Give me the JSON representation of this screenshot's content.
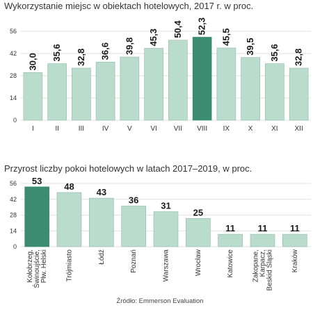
{
  "colors": {
    "bar": "#b9dccd",
    "highlight": "#3c8c72",
    "barStroke": "#8fb9a7"
  },
  "chart_data": [
    {
      "type": "bar",
      "title": "Wykorzystanie miejsc w obiektach hotelowych, 2017 r. w proc.",
      "categories": [
        "I",
        "II",
        "III",
        "IV",
        "V",
        "VI",
        "VII",
        "VIII",
        "IX",
        "X",
        "XI",
        "XII"
      ],
      "values": [
        30.0,
        35.6,
        32.8,
        36.6,
        39.8,
        45.3,
        50.4,
        52.3,
        45.5,
        39.5,
        35.6,
        32.8
      ],
      "value_labels": [
        "30,0",
        "35,6",
        "32,8",
        "36,6",
        "39,8",
        "45,3",
        "50,4",
        "52,3",
        "45,5",
        "39,5",
        "35,6",
        "32,8"
      ],
      "highlight_index": 7,
      "yticks": [
        0,
        14,
        28,
        42,
        56
      ],
      "ylim": [
        0,
        56
      ],
      "grid": true
    },
    {
      "type": "bar",
      "title": "Przyrost liczby pokoi hotelowych w latach 2017–2019, w proc.",
      "categories": [
        [
          "Kołobrzeg,",
          "Świnoujście,",
          "Płw. Helski"
        ],
        [
          "Trójmiasto"
        ],
        [
          "Łódź"
        ],
        [
          "Poznań"
        ],
        [
          "Warszawa"
        ],
        [
          "Wrocław"
        ],
        [
          "Katowice"
        ],
        [
          "Zakopane,",
          "Karpacz,",
          "Beskid Śląski"
        ],
        [
          "Kraków"
        ]
      ],
      "values": [
        53,
        48,
        43,
        36,
        31,
        25,
        11,
        11,
        11
      ],
      "value_labels": [
        "53",
        "48",
        "43",
        "36",
        "31",
        "25",
        "11",
        "11",
        "11"
      ],
      "highlight_index": 0,
      "yticks": [
        0,
        14,
        28,
        42,
        56
      ],
      "ylim": [
        0,
        56
      ],
      "grid": true
    }
  ],
  "source": "Źródło: Emmerson Evaluation"
}
